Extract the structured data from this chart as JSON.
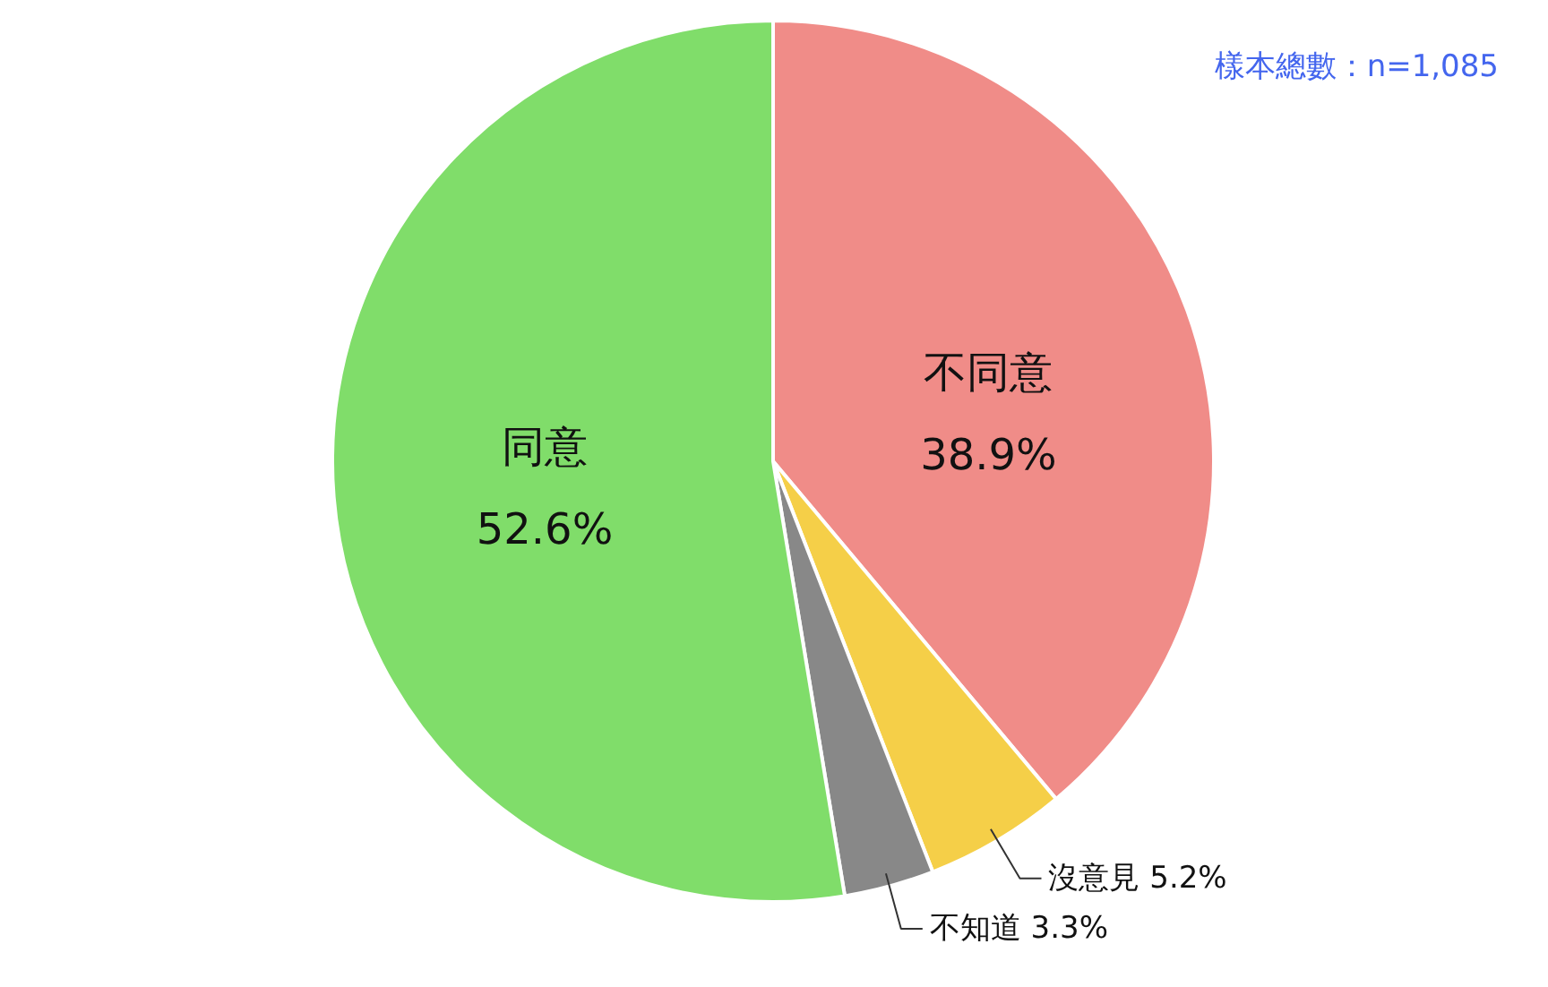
{
  "chart_data": {
    "type": "pie",
    "categories": [
      "不同意",
      "沒意見",
      "不知道",
      "同意"
    ],
    "values": [
      38.9,
      5.2,
      3.3,
      52.6
    ],
    "value_labels": [
      "38.9%",
      "5.2%",
      "3.3%",
      "52.6%"
    ],
    "colors": [
      "#f08c88",
      "#f5cf48",
      "#888888",
      "#80dd6a"
    ],
    "annotations": [
      "樣本總數：n=1,085"
    ]
  }
}
